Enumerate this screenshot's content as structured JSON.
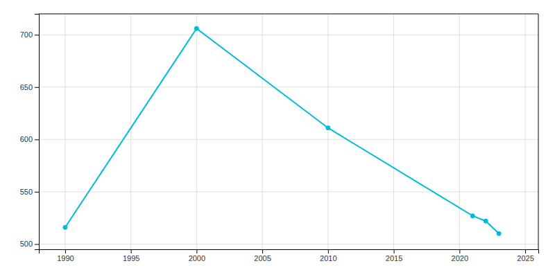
{
  "chart_data": {
    "type": "line",
    "x": [
      1990,
      2000,
      2010,
      2021,
      2022,
      2023
    ],
    "values": [
      516,
      706,
      611,
      527,
      522,
      510
    ],
    "color": "#00bcd4",
    "marker": "circle",
    "xlim": [
      1988,
      2026
    ],
    "ylim": [
      495,
      720
    ],
    "xticks": [
      1990,
      1995,
      2000,
      2005,
      2010,
      2015,
      2020,
      2025
    ],
    "yticks": [
      500,
      550,
      600,
      650,
      700
    ],
    "grid": true
  }
}
